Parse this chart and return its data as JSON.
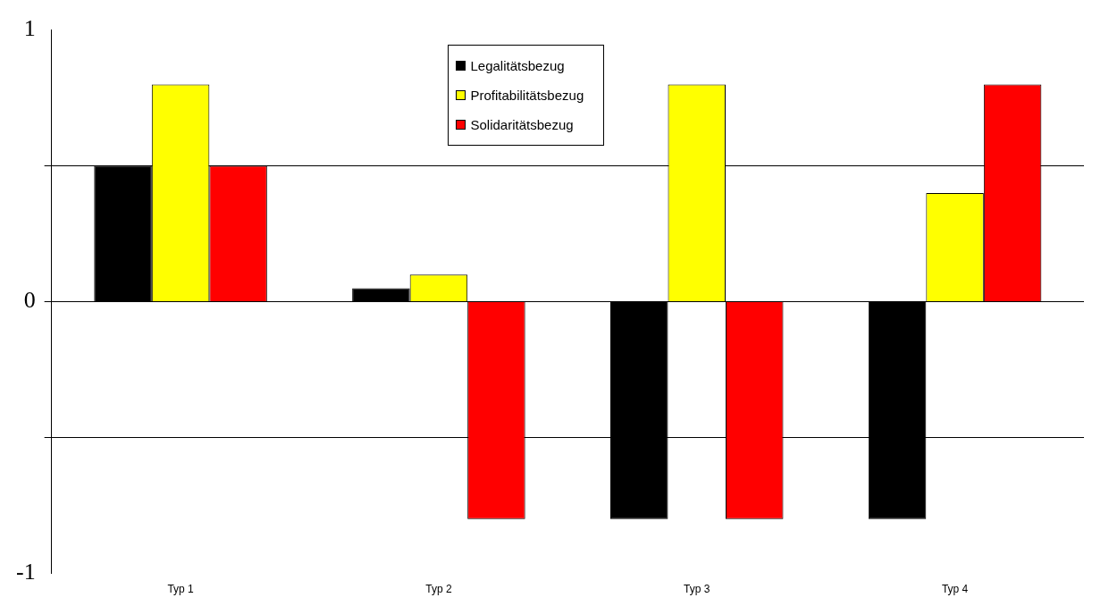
{
  "chart_data": {
    "type": "bar",
    "categories": [
      "Typ 1",
      "Typ 2",
      "Typ 3",
      "Typ 4"
    ],
    "series": [
      {
        "name": "Legalitätsbezug",
        "color": "#000000",
        "values": [
          0.5,
          0.05,
          -0.8,
          -0.8
        ]
      },
      {
        "name": "Profitabilitätsbezug",
        "color": "#ffff00",
        "values": [
          0.8,
          0.1,
          0.8,
          0.4
        ]
      },
      {
        "name": "Solidaritätsbezug",
        "color": "#ff0000",
        "values": [
          0.5,
          -0.8,
          -0.8,
          0.8
        ]
      }
    ],
    "ylim": [
      -1,
      1
    ],
    "yticks": [
      1,
      {
        "value": 0.5,
        "label": null
      },
      0,
      {
        "value": -0.5,
        "label": null
      },
      -1
    ],
    "grid": "y",
    "legend": "top"
  }
}
